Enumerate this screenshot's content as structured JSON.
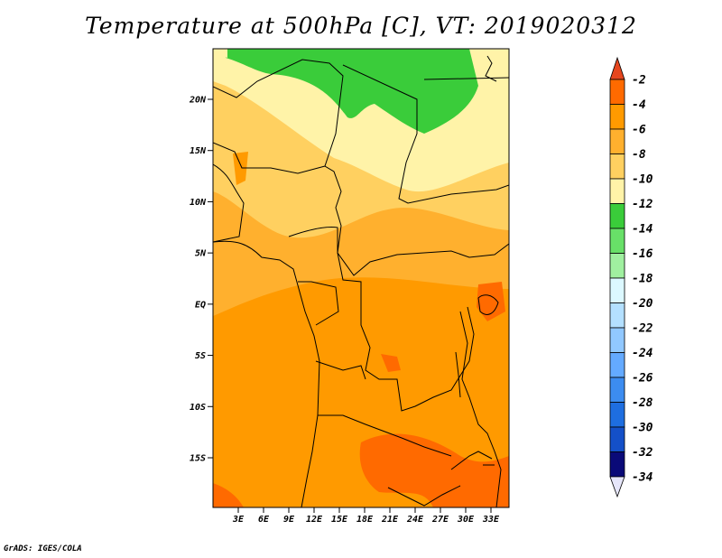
{
  "title": "Temperature at 500hPa [C], VT: 2019020312",
  "credit": "GrADS: IGES/COLA",
  "map": {
    "lat_range": [
      -20,
      25
    ],
    "lon_range": [
      0,
      35
    ],
    "lat_ticks": [
      {
        "lat": 20,
        "label": "20N"
      },
      {
        "lat": 15,
        "label": "15N"
      },
      {
        "lat": 10,
        "label": "10N"
      },
      {
        "lat": 5,
        "label": "5N"
      },
      {
        "lat": 0,
        "label": "EQ"
      },
      {
        "lat": -5,
        "label": "5S"
      },
      {
        "lat": -10,
        "label": "10S"
      },
      {
        "lat": -15,
        "label": "15S"
      }
    ],
    "lon_ticks": [
      {
        "lon": 3,
        "label": "3E"
      },
      {
        "lon": 6,
        "label": "6E"
      },
      {
        "lon": 9,
        "label": "9E"
      },
      {
        "lon": 12,
        "label": "12E"
      },
      {
        "lon": 15,
        "label": "15E"
      },
      {
        "lon": 18,
        "label": "18E"
      },
      {
        "lon": 21,
        "label": "21E"
      },
      {
        "lon": 24,
        "label": "24E"
      },
      {
        "lon": 27,
        "label": "27E"
      },
      {
        "lon": 30,
        "label": "30E"
      },
      {
        "lon": 33,
        "label": "33E"
      }
    ]
  },
  "colorbar": {
    "labels": [
      "-2",
      "-4",
      "-6",
      "-8",
      "-10",
      "-12",
      "-14",
      "-16",
      "-18",
      "-20",
      "-22",
      "-24",
      "-26",
      "-28",
      "-30",
      "-32",
      "-34"
    ],
    "colors": [
      "#e6461e",
      "#ff6a00",
      "#ff9a00",
      "#ffb02e",
      "#ffd060",
      "#fff3a8",
      "#3acc3a",
      "#68e068",
      "#a0f0a0",
      "#dcf8ff",
      "#b4e0ff",
      "#91c8ff",
      "#64aaff",
      "#3c8cf0",
      "#1e6ee0",
      "#1450c8",
      "#0a0a78"
    ],
    "top_arrow_color": "#e6461e",
    "bottom_arrow_color": "#e6e6fa"
  }
}
